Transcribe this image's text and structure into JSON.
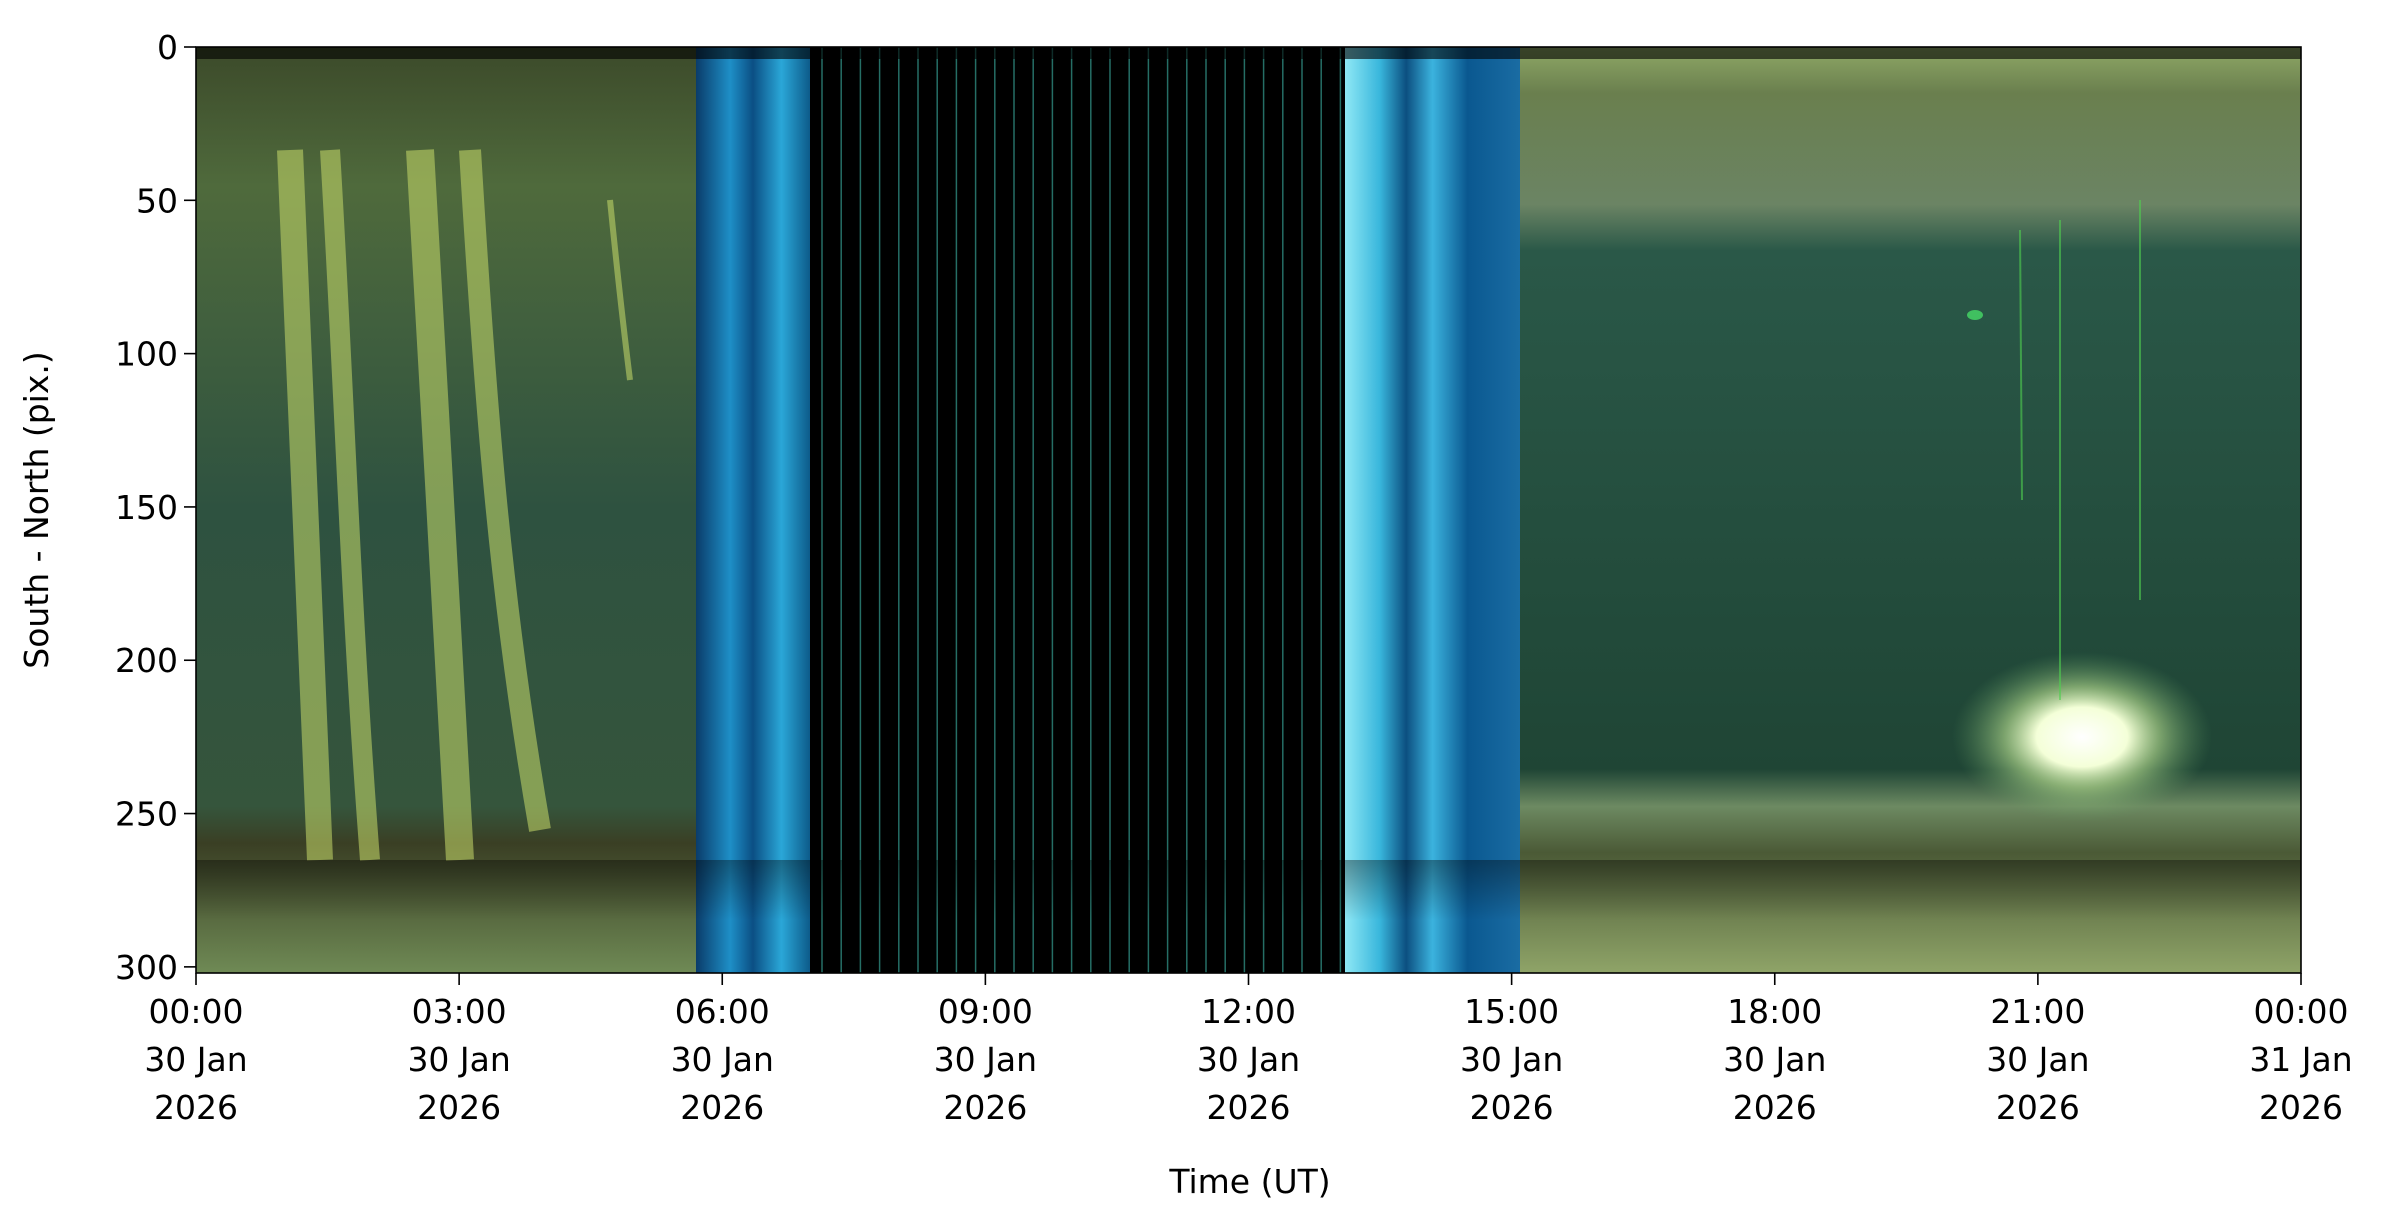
{
  "chart_data": {
    "type": "image",
    "x_label": "Time (UT)",
    "y_label": "South - North (pix.)",
    "xlim": [
      "2026-01-30T00:00",
      "2026-01-31T00:00"
    ],
    "xticks": [
      {
        "value": "2026-01-30T00:00",
        "label": "00:00\n30 Jan\n2026"
      },
      {
        "value": "2026-01-30T03:00",
        "label": "03:00\n30 Jan\n2026"
      },
      {
        "value": "2026-01-30T06:00",
        "label": "06:00\n30 Jan\n2026"
      },
      {
        "value": "2026-01-30T09:00",
        "label": "09:00\n30 Jan\n2026"
      },
      {
        "value": "2026-01-30T12:00",
        "label": "12:00\n30 Jan\n2026"
      },
      {
        "value": "2026-01-30T15:00",
        "label": "15:00\n30 Jan\n2026"
      },
      {
        "value": "2026-01-30T18:00",
        "label": "18:00\n30 Jan\n2026"
      },
      {
        "value": "2026-01-30T21:00",
        "label": "21:00\n30 Jan\n2026"
      },
      {
        "value": "2026-01-31T00:00",
        "label": "00:00\n31 Jan\n2026"
      }
    ],
    "ylim": [
      302,
      0
    ],
    "yticks": [
      0,
      50,
      100,
      150,
      200,
      250,
      300
    ]
  }
}
